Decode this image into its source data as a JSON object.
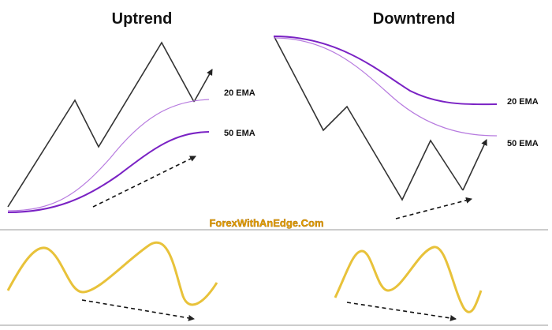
{
  "panels": {
    "uptrend": {
      "title": "Uptrend",
      "ema_fast_label": "20 EMA",
      "ema_slow_label": "50 EMA"
    },
    "downtrend": {
      "title": "Downtrend",
      "ema_fast_label": "20 EMA",
      "ema_slow_label": "50 EMA"
    }
  },
  "watermark": "ForexWithAnEdge.Com",
  "colors": {
    "price": "#333333",
    "ema_fast": "#b77bdf",
    "ema_slow": "#7a22c4",
    "oscillator": "#e8c23a",
    "divider": "#999999",
    "arrow": "#111111"
  },
  "icons": {
    "trend_arrow": "arrow-up-right-icon",
    "divergence_arrow": "dashed-arrow-icon"
  }
}
